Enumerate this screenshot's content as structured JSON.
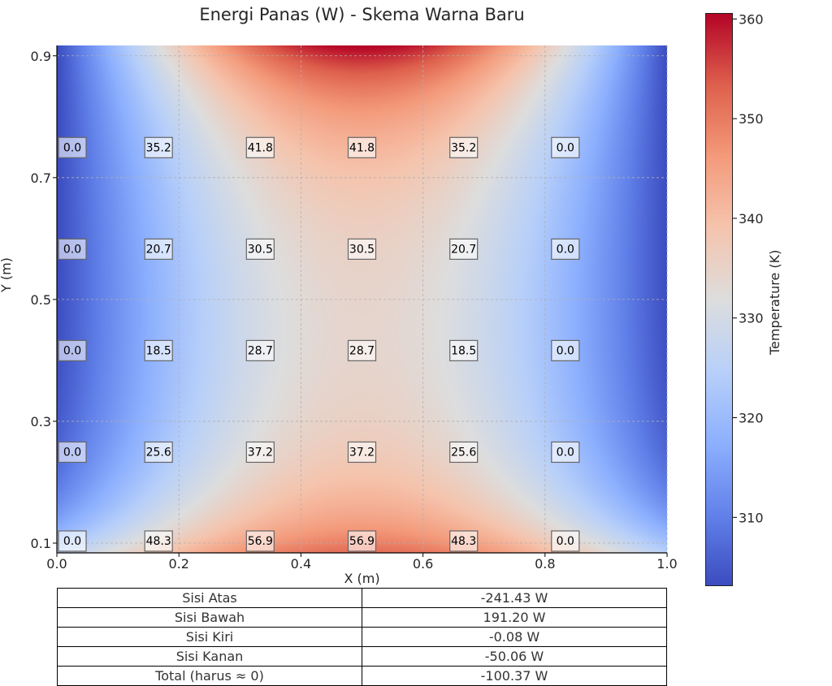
{
  "chart_data": {
    "type": "heatmap",
    "title": "Energi Panas (W) - Skema Warna Baru",
    "xlabel": "X (m)",
    "ylabel": "Y (m)",
    "xlim": [
      0.0,
      1.0
    ],
    "ylim": [
      0.084,
      0.917
    ],
    "xticks": [
      "0.0",
      "0.2",
      "0.4",
      "0.6",
      "0.8",
      "1.0"
    ],
    "xtick_values": [
      0.0,
      0.2,
      0.4,
      0.6,
      0.8,
      1.0
    ],
    "yticks": [
      "0.1",
      "0.3",
      "0.5",
      "0.7",
      "0.9"
    ],
    "ytick_values": [
      0.1,
      0.3,
      0.5,
      0.7,
      0.9
    ],
    "grid": true,
    "colormap": "coolwarm",
    "colorbar": {
      "label": "Temperature (K)",
      "range": [
        303.1,
        360.6
      ],
      "ticks": [
        "310",
        "320",
        "330",
        "340",
        "350",
        "360"
      ],
      "tick_values": [
        310,
        320,
        330,
        340,
        350,
        360
      ]
    },
    "annotation_x": [
      0.0,
      0.1667,
      0.3333,
      0.5,
      0.6667,
      0.8333
    ],
    "annotation_y": [
      0.75,
      0.5833,
      0.4167,
      0.25,
      0.084
    ],
    "annotations": [
      [
        "0.0",
        "35.2",
        "41.8",
        "41.8",
        "35.2",
        "0.0"
      ],
      [
        "0.0",
        "20.7",
        "30.5",
        "30.5",
        "20.7",
        "0.0"
      ],
      [
        "0.0",
        "18.5",
        "28.7",
        "28.7",
        "18.5",
        "0.0"
      ],
      [
        "0.0",
        "25.6",
        "37.2",
        "37.2",
        "25.6",
        "0.0"
      ],
      [
        "0.0",
        "48.3",
        "56.9",
        "56.9",
        "48.3",
        "0.0"
      ]
    ]
  },
  "table": {
    "rows": [
      [
        "Sisi Atas",
        "-241.43 W"
      ],
      [
        "Sisi Bawah",
        "191.20 W"
      ],
      [
        "Sisi Kiri",
        "-0.08 W"
      ],
      [
        "Sisi Kanan",
        "-50.06 W"
      ],
      [
        "Total (harus ≈ 0)",
        "-100.37 W"
      ]
    ]
  }
}
